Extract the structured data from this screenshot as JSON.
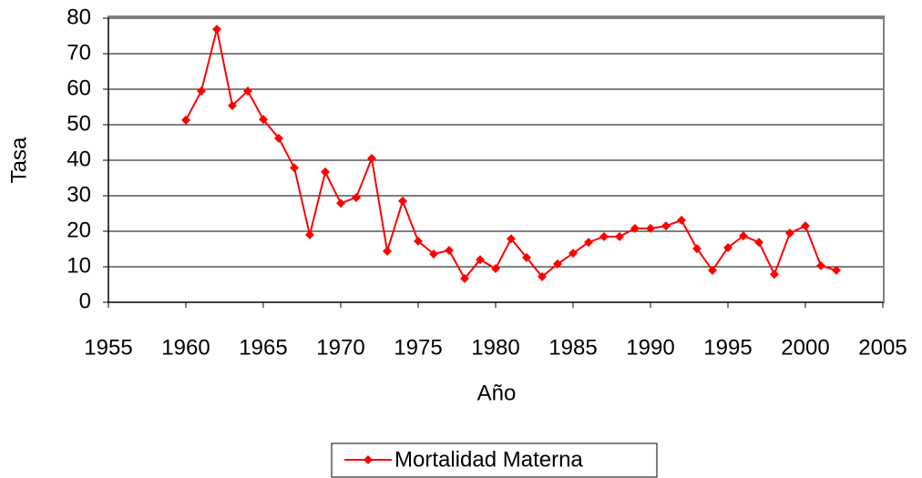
{
  "chart_data": {
    "type": "line",
    "xlabel": "Año",
    "ylabel": "Tasa",
    "x": [
      1960,
      1961,
      1962,
      1963,
      1964,
      1965,
      1966,
      1967,
      1968,
      1969,
      1970,
      1971,
      1972,
      1973,
      1974,
      1975,
      1976,
      1977,
      1978,
      1979,
      1980,
      1981,
      1982,
      1983,
      1984,
      1985,
      1986,
      1987,
      1988,
      1989,
      1990,
      1991,
      1992,
      1993,
      1994,
      1995,
      1996,
      1997,
      1998,
      1999,
      2000,
      2001,
      2002
    ],
    "series": [
      {
        "name": "Mortalidad Materna",
        "color": "#ff0000",
        "values": [
          51.3,
          59.5,
          76.9,
          55.4,
          59.5,
          51.5,
          46.2,
          37.9,
          19,
          36.7,
          27.9,
          29.5,
          40.5,
          14.4,
          28.5,
          17.2,
          13.6,
          14.6,
          6.7,
          12,
          9.5,
          17.9,
          12.6,
          7.2,
          10.8,
          13.8,
          16.9,
          18.5,
          18.5,
          20.8,
          20.8,
          21.5,
          23.1,
          15.1,
          9,
          15.4,
          18.7,
          16.9,
          7.9,
          19.5,
          21.5,
          10.3,
          9
        ]
      }
    ],
    "xlim": [
      1955,
      2005
    ],
    "xticks": [
      1955,
      1960,
      1965,
      1970,
      1975,
      1980,
      1985,
      1990,
      1995,
      2000,
      2005
    ],
    "ylim": [
      0,
      80
    ],
    "yticks": [
      0,
      10,
      20,
      30,
      40,
      50,
      60,
      70,
      80
    ],
    "grid": true,
    "legend": "bottom"
  }
}
